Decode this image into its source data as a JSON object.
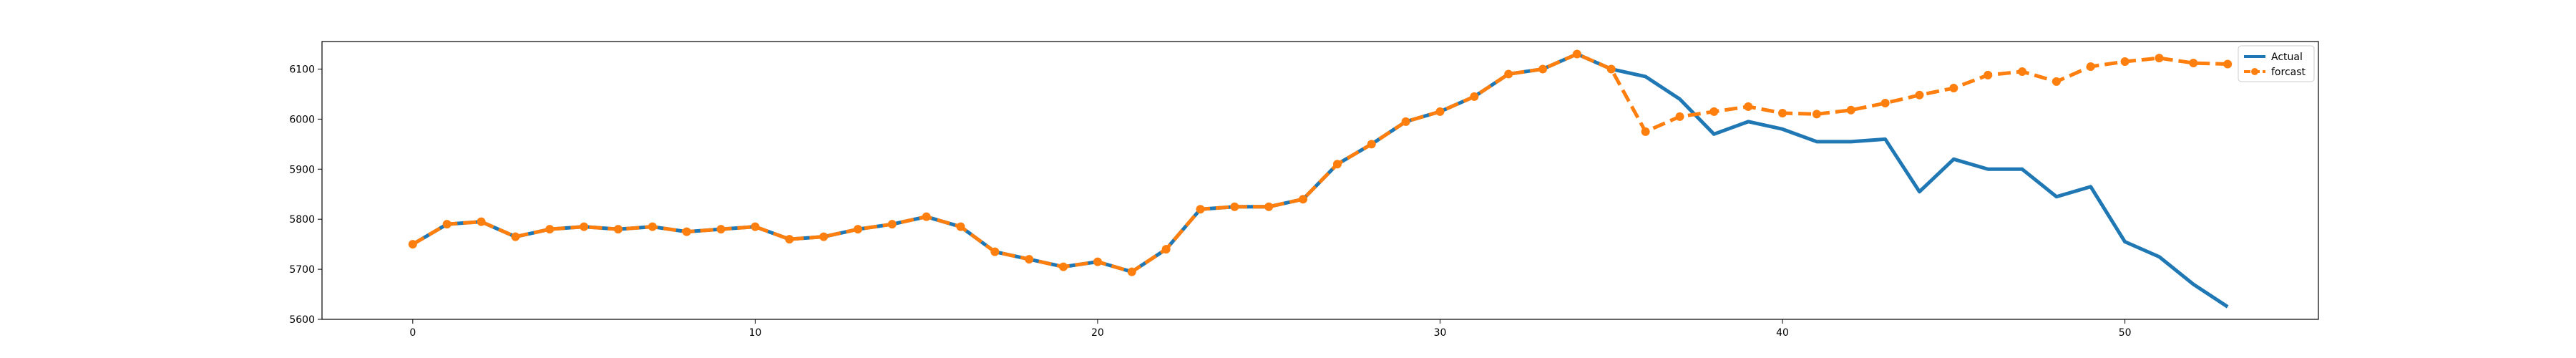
{
  "chart_data": {
    "type": "line",
    "title": "",
    "xlabel": "",
    "ylabel": "",
    "xlim": [
      -2.65,
      55.65
    ],
    "ylim": [
      5600,
      6155
    ],
    "xticks": [
      0,
      10,
      20,
      30,
      40,
      50
    ],
    "yticks": [
      5600,
      5700,
      5800,
      5900,
      6000,
      6100
    ],
    "grid": false,
    "legend_position": "top-right",
    "series": [
      {
        "name": "Actual",
        "color": "#1f77b4",
        "style": "solid",
        "x": [
          0,
          1,
          2,
          3,
          4,
          5,
          6,
          7,
          8,
          9,
          10,
          11,
          12,
          13,
          14,
          15,
          16,
          17,
          18,
          19,
          20,
          21,
          22,
          23,
          24,
          25,
          26,
          27,
          28,
          29,
          30,
          31,
          32,
          33,
          34,
          35,
          36,
          37,
          38,
          39,
          40,
          41,
          42,
          43,
          44,
          45,
          46,
          47,
          48,
          49,
          50,
          51,
          52,
          53
        ],
        "y": [
          5750,
          5790,
          5795,
          5765,
          5780,
          5785,
          5780,
          5785,
          5775,
          5780,
          5785,
          5760,
          5765,
          5780,
          5790,
          5805,
          5785,
          5735,
          5720,
          5705,
          5715,
          5695,
          5740,
          5820,
          5825,
          5825,
          5840,
          5910,
          5950,
          5995,
          6015,
          6045,
          6090,
          6100,
          6130,
          6100,
          6085,
          6040,
          5970,
          5995,
          5980,
          5955,
          5955,
          5960,
          5855,
          5920,
          5900,
          5900,
          5845,
          5865,
          5755,
          5725,
          5670,
          5625
        ]
      },
      {
        "name": "forcast",
        "color": "#ff7f0e",
        "style": "dashed",
        "markers": true,
        "x": [
          0,
          1,
          2,
          3,
          4,
          5,
          6,
          7,
          8,
          9,
          10,
          11,
          12,
          13,
          14,
          15,
          16,
          17,
          18,
          19,
          20,
          21,
          22,
          23,
          24,
          25,
          26,
          27,
          28,
          29,
          30,
          31,
          32,
          33,
          34,
          35,
          36,
          37,
          38,
          39,
          40,
          41,
          42,
          43,
          44,
          45,
          46,
          47,
          48,
          49,
          50,
          51,
          52,
          53
        ],
        "y": [
          5750,
          5790,
          5795,
          5765,
          5780,
          5785,
          5780,
          5785,
          5775,
          5780,
          5785,
          5760,
          5765,
          5780,
          5790,
          5805,
          5785,
          5735,
          5720,
          5705,
          5715,
          5695,
          5740,
          5820,
          5825,
          5825,
          5840,
          5910,
          5950,
          5995,
          6015,
          6045,
          6090,
          6100,
          6130,
          6100,
          5975,
          6005,
          6015,
          6025,
          6012,
          6010,
          6018,
          6032,
          6048,
          6062,
          6088,
          6095,
          6075,
          6105,
          6115,
          6122,
          6112,
          6110
        ]
      }
    ]
  }
}
